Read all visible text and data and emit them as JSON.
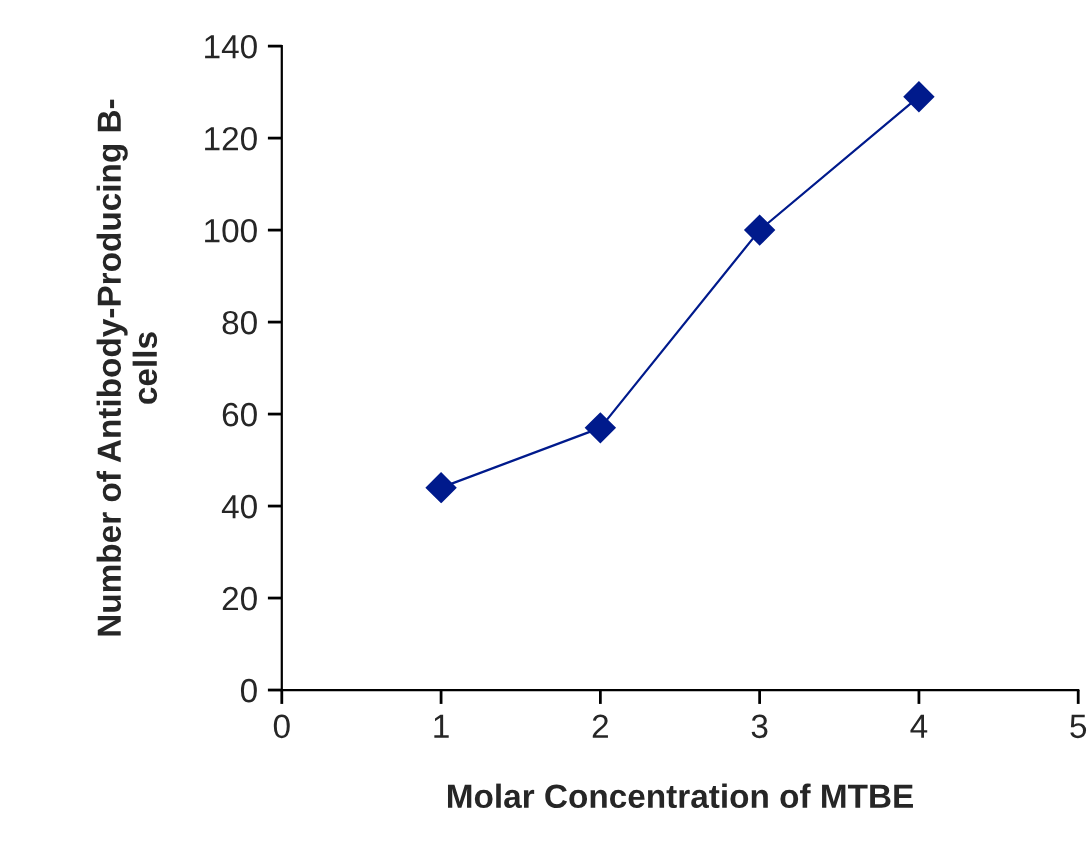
{
  "chart_data": {
    "type": "line",
    "xlabel": "Molar Concentration of MTBE",
    "ylabel": "Number of Antibody-Producing B-\ncells",
    "x": [
      1,
      2,
      3,
      4
    ],
    "series": [
      {
        "color": "#001a8c",
        "values": [
          44,
          57,
          100,
          129
        ]
      }
    ],
    "xlim": [
      0,
      5
    ],
    "xticks": [
      0,
      1,
      2,
      3,
      4,
      5
    ],
    "ylim": [
      0,
      140
    ],
    "yticks": [
      0,
      20,
      40,
      60,
      80,
      100,
      120,
      140
    ],
    "marker": "diamond",
    "line_style": "solid",
    "grid": false,
    "legend": false
  }
}
